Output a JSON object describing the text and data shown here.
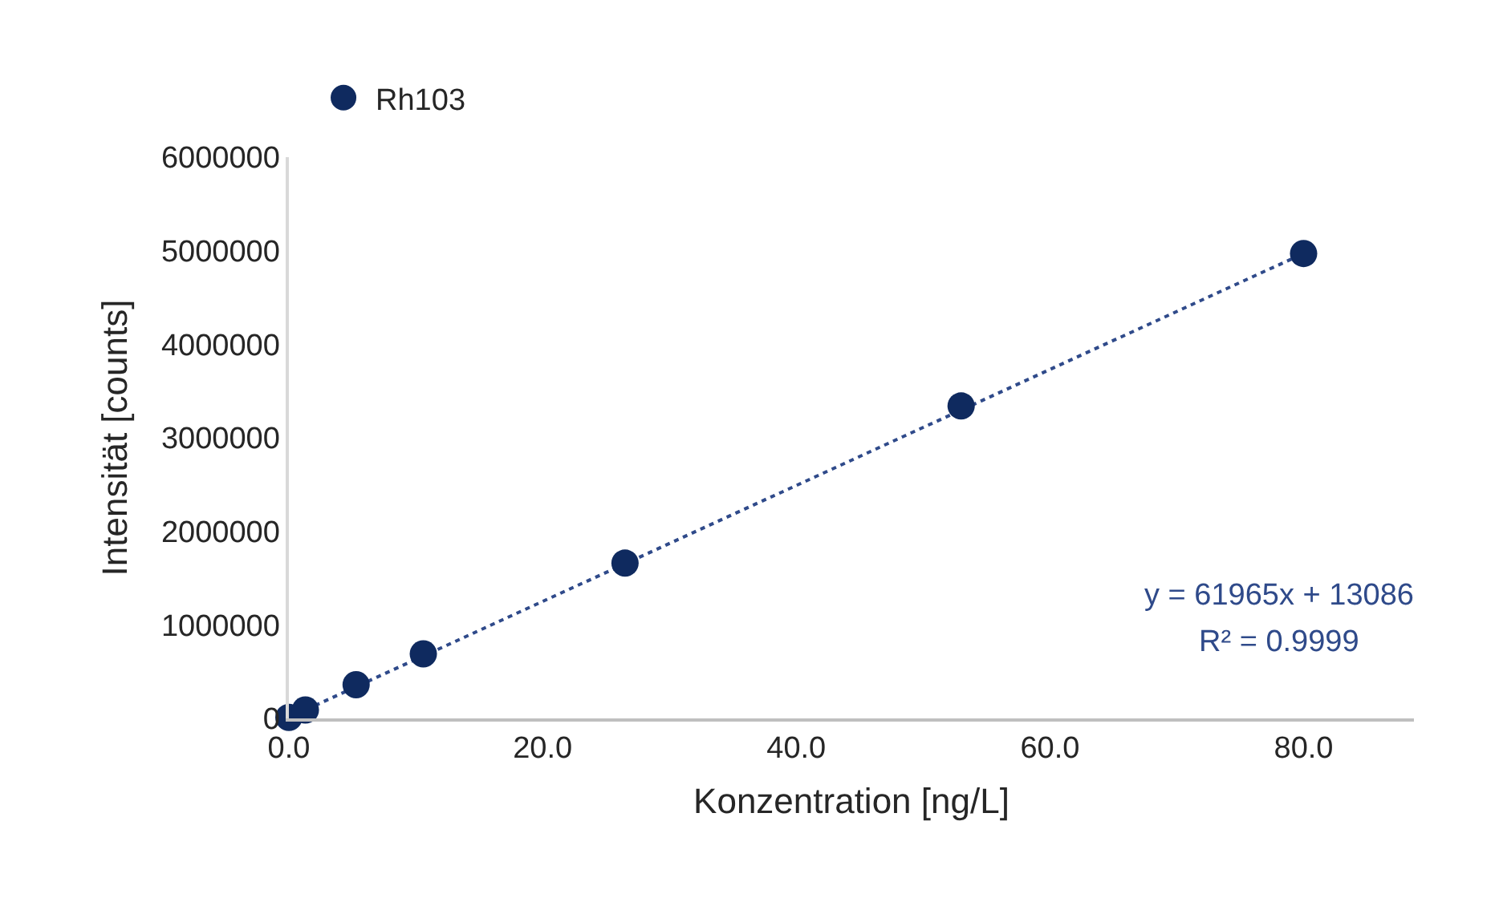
{
  "chart_data": {
    "type": "scatter",
    "xlabel": "Konzentration [ng/L]",
    "ylabel": "Intensität [counts]",
    "xlim": [
      0,
      88.7
    ],
    "ylim": [
      0,
      6000000
    ],
    "xticks": [
      {
        "value": 0,
        "label": "0.0"
      },
      {
        "value": 20,
        "label": "20.0"
      },
      {
        "value": 40,
        "label": "40.0"
      },
      {
        "value": 60,
        "label": "60.0"
      },
      {
        "value": 80,
        "label": "80.0"
      }
    ],
    "yticks": [
      0,
      1000000,
      2000000,
      3000000,
      4000000,
      5000000,
      6000000
    ],
    "legend": "top left",
    "series": [
      {
        "name": "Rh103",
        "color": "#0f2a5f",
        "marker": "circle",
        "x": [
          0,
          1.3,
          5.3,
          10.6,
          26.5,
          53,
          80
        ],
        "values": [
          10000,
          90000,
          360000,
          690000,
          1660000,
          3340000,
          4970000
        ]
      },
      {
        "type": "line",
        "color": "#2f4a8a",
        "line_style": "dotted",
        "marker": "none",
        "x": [
          0,
          80
        ],
        "values": [
          10000,
          4970000
        ]
      }
    ],
    "annotations": [
      "y = 61965x + 13086",
      "R² = 0.9999"
    ]
  }
}
